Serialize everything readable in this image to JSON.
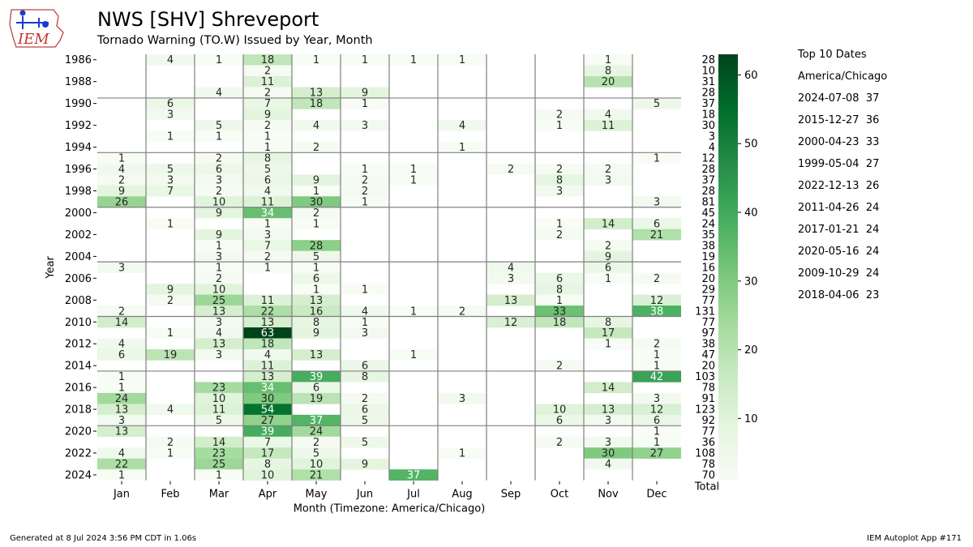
{
  "header": {
    "logo_text": "IEM",
    "title": "NWS [SHV] Shreveport",
    "subtitle": "Tornado Warning (TO.W) Issued by Year, Month"
  },
  "chart_data": {
    "type": "heatmap",
    "title": "NWS [SHV] Shreveport",
    "subtitle": "Tornado Warning (TO.W) Issued by Year, Month",
    "xlabel": "Month (Timezone: America/Chicago)",
    "ylabel": "Year",
    "total_label": "Total",
    "colormap": "Greens",
    "colorbar_range": [
      1,
      63
    ],
    "colorbar_ticks": [
      10,
      20,
      30,
      40,
      50,
      60
    ],
    "months": [
      "Jan",
      "Feb",
      "Mar",
      "Apr",
      "May",
      "Jun",
      "Jul",
      "Aug",
      "Sep",
      "Oct",
      "Nov",
      "Dec"
    ],
    "years": [
      1986,
      1987,
      1988,
      1989,
      1990,
      1991,
      1992,
      1993,
      1994,
      1995,
      1996,
      1997,
      1998,
      1999,
      2000,
      2001,
      2002,
      2003,
      2004,
      2005,
      2006,
      2007,
      2008,
      2009,
      2010,
      2011,
      2012,
      2013,
      2014,
      2015,
      2016,
      2017,
      2018,
      2019,
      2020,
      2021,
      2022,
      2023,
      2024
    ],
    "year_tick_labels": [
      1986,
      1988,
      1990,
      1992,
      1994,
      1996,
      1998,
      2000,
      2002,
      2004,
      2006,
      2008,
      2010,
      2012,
      2014,
      2016,
      2018,
      2020,
      2022,
      2024
    ],
    "values": [
      [
        null,
        4,
        1,
        18,
        1,
        1,
        1,
        1,
        null,
        null,
        1,
        null
      ],
      [
        null,
        null,
        null,
        2,
        null,
        null,
        null,
        null,
        null,
        null,
        8,
        null
      ],
      [
        null,
        null,
        null,
        11,
        null,
        null,
        null,
        null,
        null,
        null,
        20,
        null
      ],
      [
        null,
        null,
        4,
        2,
        13,
        9,
        null,
        null,
        null,
        null,
        null,
        null
      ],
      [
        null,
        6,
        null,
        7,
        18,
        1,
        null,
        null,
        null,
        null,
        null,
        5
      ],
      [
        null,
        3,
        null,
        9,
        null,
        null,
        null,
        null,
        null,
        2,
        4,
        null
      ],
      [
        null,
        null,
        5,
        2,
        4,
        3,
        null,
        4,
        null,
        1,
        11,
        null
      ],
      [
        null,
        1,
        1,
        1,
        null,
        null,
        null,
        null,
        null,
        null,
        null,
        null
      ],
      [
        null,
        null,
        null,
        1,
        2,
        null,
        null,
        1,
        null,
        null,
        null,
        null
      ],
      [
        1,
        null,
        2,
        8,
        null,
        null,
        null,
        null,
        null,
        null,
        null,
        1
      ],
      [
        4,
        5,
        6,
        5,
        null,
        1,
        1,
        null,
        2,
        2,
        2,
        null
      ],
      [
        2,
        3,
        3,
        6,
        9,
        2,
        1,
        null,
        null,
        8,
        3,
        null
      ],
      [
        9,
        7,
        2,
        4,
        1,
        2,
        null,
        null,
        null,
        3,
        null,
        null
      ],
      [
        26,
        null,
        10,
        11,
        30,
        1,
        null,
        null,
        null,
        null,
        null,
        3
      ],
      [
        null,
        null,
        9,
        34,
        2,
        null,
        null,
        null,
        null,
        null,
        null,
        null
      ],
      [
        null,
        1,
        null,
        1,
        1,
        null,
        null,
        null,
        null,
        1,
        14,
        6
      ],
      [
        null,
        null,
        9,
        3,
        null,
        null,
        null,
        null,
        null,
        2,
        null,
        21
      ],
      [
        null,
        null,
        1,
        7,
        28,
        null,
        null,
        null,
        null,
        null,
        2,
        null
      ],
      [
        null,
        null,
        3,
        2,
        5,
        null,
        null,
        null,
        null,
        null,
        9,
        null
      ],
      [
        3,
        null,
        1,
        1,
        1,
        null,
        null,
        null,
        4,
        null,
        6,
        null
      ],
      [
        null,
        null,
        2,
        null,
        6,
        null,
        null,
        null,
        3,
        6,
        1,
        2
      ],
      [
        null,
        9,
        10,
        null,
        1,
        1,
        null,
        null,
        null,
        8,
        null,
        null
      ],
      [
        null,
        2,
        25,
        11,
        13,
        null,
        null,
        null,
        13,
        1,
        null,
        12
      ],
      [
        2,
        null,
        13,
        22,
        16,
        4,
        1,
        2,
        null,
        33,
        null,
        38
      ],
      [
        14,
        null,
        3,
        13,
        8,
        1,
        null,
        null,
        12,
        18,
        8,
        null
      ],
      [
        null,
        1,
        4,
        63,
        9,
        3,
        null,
        null,
        null,
        null,
        17,
        null
      ],
      [
        4,
        null,
        13,
        18,
        null,
        null,
        null,
        null,
        null,
        null,
        1,
        2
      ],
      [
        6,
        19,
        3,
        4,
        13,
        null,
        1,
        null,
        null,
        null,
        null,
        1
      ],
      [
        null,
        null,
        null,
        11,
        null,
        6,
        null,
        null,
        null,
        2,
        null,
        1
      ],
      [
        1,
        null,
        null,
        13,
        39,
        8,
        null,
        null,
        null,
        null,
        null,
        42
      ],
      [
        1,
        null,
        23,
        34,
        6,
        null,
        null,
        null,
        null,
        null,
        14,
        null
      ],
      [
        24,
        null,
        10,
        30,
        19,
        2,
        null,
        3,
        null,
        null,
        null,
        3
      ],
      [
        13,
        4,
        11,
        54,
        null,
        6,
        null,
        null,
        null,
        10,
        13,
        12
      ],
      [
        3,
        null,
        5,
        27,
        37,
        5,
        null,
        null,
        null,
        6,
        3,
        6
      ],
      [
        13,
        null,
        null,
        39,
        24,
        null,
        null,
        null,
        null,
        null,
        null,
        1
      ],
      [
        null,
        2,
        14,
        7,
        2,
        5,
        null,
        null,
        null,
        2,
        3,
        1
      ],
      [
        4,
        1,
        23,
        17,
        5,
        null,
        null,
        1,
        null,
        null,
        30,
        27
      ],
      [
        22,
        null,
        25,
        8,
        10,
        9,
        null,
        null,
        null,
        null,
        4,
        null
      ],
      [
        1,
        null,
        1,
        10,
        21,
        null,
        37,
        null,
        null,
        null,
        null,
        null
      ]
    ],
    "totals": [
      28,
      10,
      31,
      28,
      37,
      18,
      30,
      3,
      4,
      12,
      28,
      37,
      28,
      81,
      45,
      24,
      35,
      38,
      19,
      16,
      20,
      29,
      77,
      131,
      77,
      97,
      38,
      47,
      20,
      103,
      78,
      91,
      123,
      92,
      77,
      36,
      108,
      78,
      70
    ]
  },
  "top10": {
    "title": "Top 10 Dates",
    "timezone": "America/Chicago",
    "entries": [
      "2024-07-08  37",
      "2015-12-27  36",
      "2000-04-23  33",
      "1999-05-04  27",
      "2022-12-13  26",
      "2011-04-26  24",
      "2017-01-21  24",
      "2020-05-16  24",
      "2009-10-29  24",
      "2018-04-06  23"
    ]
  },
  "footer": {
    "generated": "Generated at 8 Jul 2024 3:56 PM CDT in 1.06s",
    "app": "IEM Autoplot App #171"
  }
}
